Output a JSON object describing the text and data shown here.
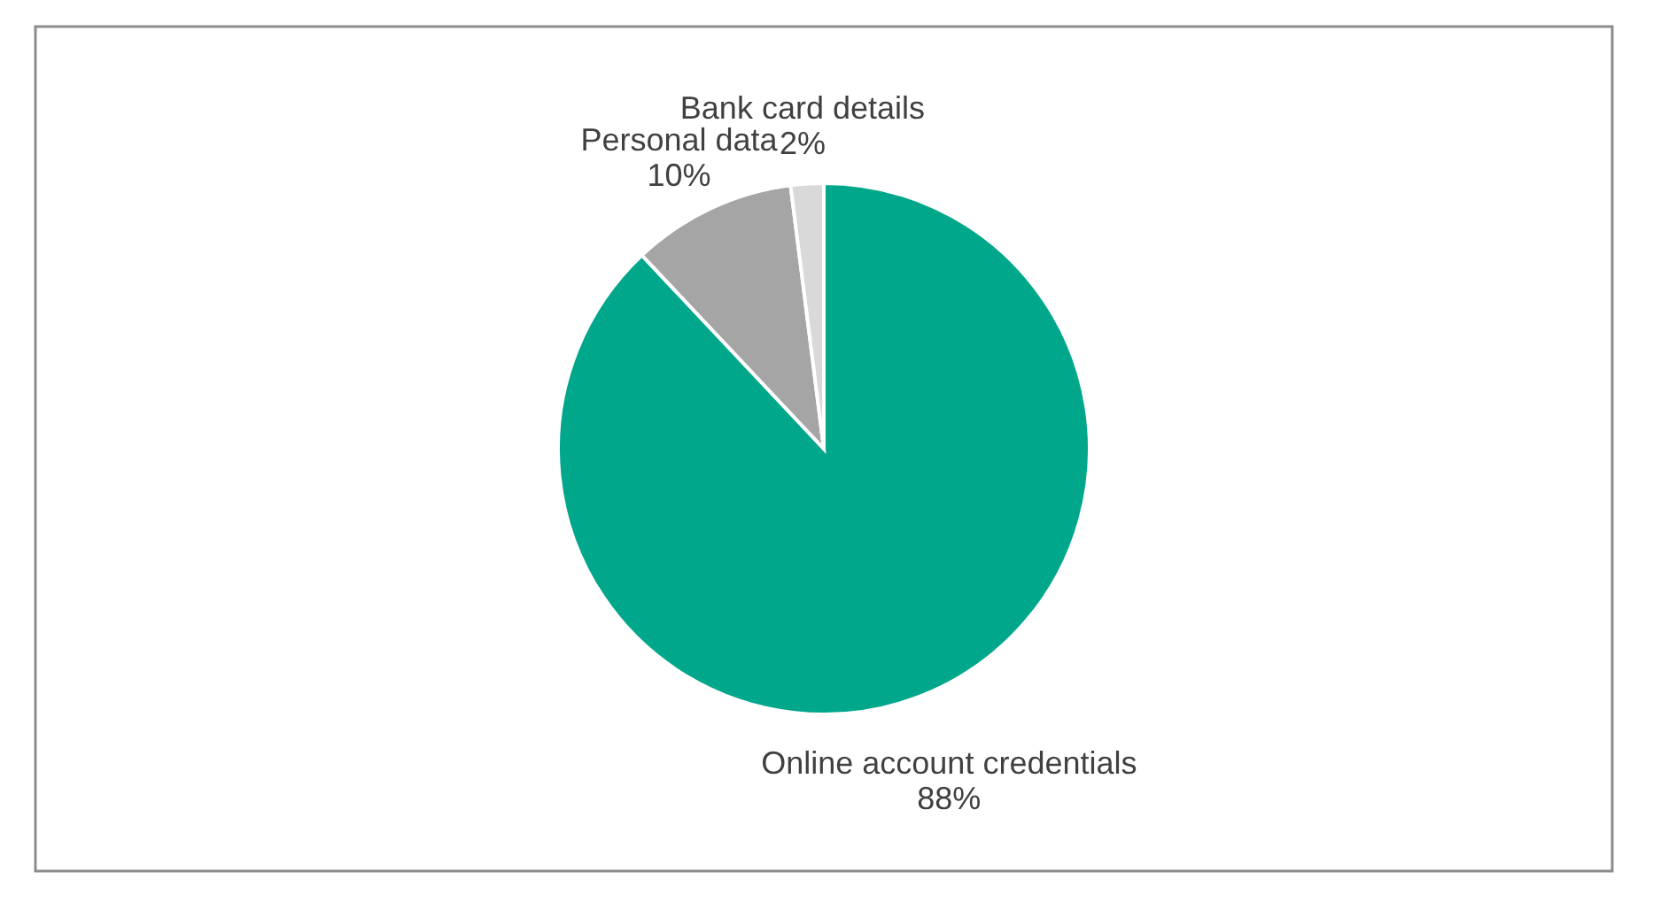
{
  "chart_data": {
    "type": "pie",
    "categories": [
      "Online account credentials",
      "Personal data",
      "Bank card details"
    ],
    "values": [
      88,
      10,
      2
    ],
    "value_labels": [
      "88%",
      "10%",
      "2%"
    ],
    "colors": [
      "#00a78a",
      "#a5a5a5",
      "#d9d9d9"
    ]
  }
}
